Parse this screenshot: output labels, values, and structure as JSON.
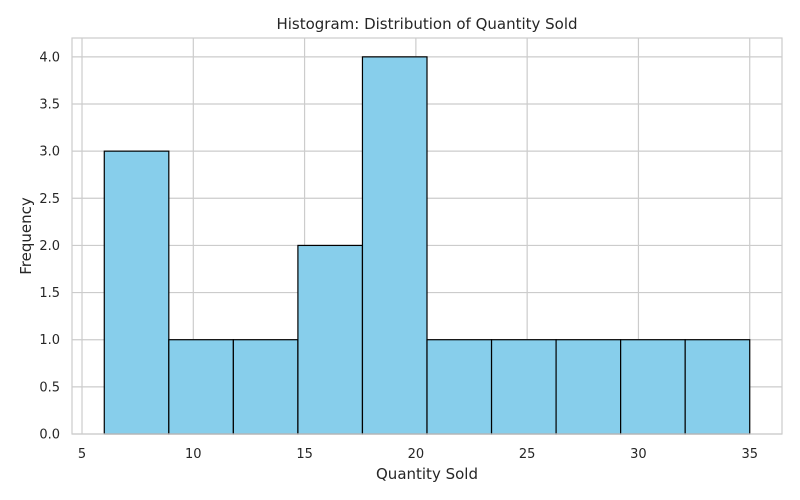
{
  "chart_data": {
    "type": "bar",
    "title": "Histogram: Distribution of Quantity Sold",
    "xlabel": "Quantity Sold",
    "ylabel": "Frequency",
    "xlim": [
      4.55,
      36.45
    ],
    "ylim": [
      0,
      4.2
    ],
    "x_ticks": [
      5,
      10,
      15,
      20,
      25,
      30,
      35
    ],
    "x_tick_labels": [
      "5",
      "10",
      "15",
      "20",
      "25",
      "30",
      "35"
    ],
    "y_ticks": [
      0,
      0.5,
      1,
      1.5,
      2,
      2.5,
      3,
      3.5,
      4
    ],
    "y_tick_labels": [
      "0.0",
      "0.5",
      "1.0",
      "1.5",
      "2.0",
      "2.5",
      "3.0",
      "3.5",
      "4.0"
    ],
    "bin_edges": [
      6,
      8.9,
      11.8,
      14.7,
      17.6,
      20.5,
      23.4,
      26.3,
      29.2,
      32.1,
      35
    ],
    "values": [
      3,
      1,
      1,
      2,
      4,
      1,
      1,
      1,
      1,
      1
    ],
    "grid": true,
    "colors": {
      "bar_fill": "#87CEEB",
      "bar_edge": "#000000",
      "grid": "#cccccc",
      "frame": "#cccccc",
      "text": "#262626"
    }
  }
}
